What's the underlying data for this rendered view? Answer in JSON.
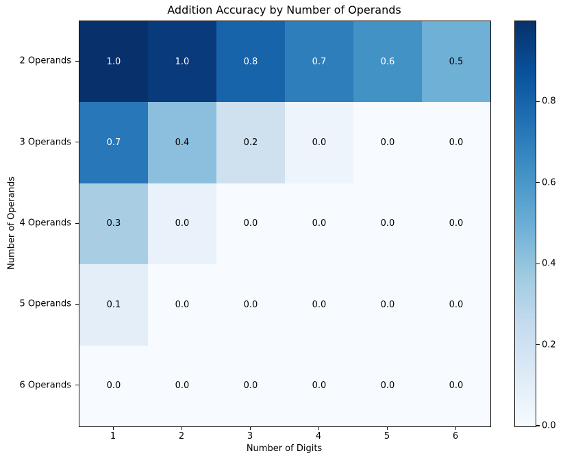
{
  "chart_data": {
    "type": "heatmap",
    "title": "Addition Accuracy by Number of Operands",
    "xlabel": "Number of Digits",
    "ylabel": "Number of Operands",
    "x_categories": [
      "1",
      "2",
      "3",
      "4",
      "5",
      "6"
    ],
    "y_categories": [
      "2 Operands",
      "3 Operands",
      "4 Operands",
      "5 Operands",
      "6 Operands"
    ],
    "values": [
      [
        1.0,
        1.0,
        0.8,
        0.7,
        0.6,
        0.5
      ],
      [
        0.7,
        0.4,
        0.2,
        0.0,
        0.0,
        0.0
      ],
      [
        0.3,
        0.0,
        0.0,
        0.0,
        0.0,
        0.0
      ],
      [
        0.1,
        0.0,
        0.0,
        0.0,
        0.0,
        0.0
      ],
      [
        0.0,
        0.0,
        0.0,
        0.0,
        0.0,
        0.0
      ]
    ],
    "cell_labels": [
      [
        "1.0",
        "1.0",
        "0.8",
        "0.7",
        "0.6",
        "0.5"
      ],
      [
        "0.7",
        "0.4",
        "0.2",
        "0.0",
        "0.0",
        "0.0"
      ],
      [
        "0.3",
        "0.0",
        "0.0",
        "0.0",
        "0.0",
        "0.0"
      ],
      [
        "0.1",
        "0.0",
        "0.0",
        "0.0",
        "0.0",
        "0.0"
      ],
      [
        "0.0",
        "0.0",
        "0.0",
        "0.0",
        "0.0",
        "0.0"
      ]
    ],
    "cell_colors": [
      [
        "#08306b",
        "#093a7c",
        "#1764ab",
        "#2e7ebc",
        "#4292c6",
        "#6fb0d7"
      ],
      [
        "#2777b9",
        "#8bbfdd",
        "#cfe0ef",
        "#edf4fb",
        "#f7fbff",
        "#f7fbff"
      ],
      [
        "#a9cee4",
        "#e9f1fa",
        "#f7fbff",
        "#f7fbff",
        "#f7fbff",
        "#f7fbff"
      ],
      [
        "#e3eef9",
        "#f7fbff",
        "#f7fbff",
        "#f7fbff",
        "#f7fbff",
        "#f7fbff"
      ],
      [
        "#f7fbff",
        "#f7fbff",
        "#f7fbff",
        "#f7fbff",
        "#f7fbff",
        "#f7fbff"
      ]
    ],
    "cell_text_colors": [
      [
        "#ffffff",
        "#ffffff",
        "#ffffff",
        "#ffffff",
        "#ffffff",
        "#000000"
      ],
      [
        "#ffffff",
        "#000000",
        "#000000",
        "#000000",
        "#000000",
        "#000000"
      ],
      [
        "#000000",
        "#000000",
        "#000000",
        "#000000",
        "#000000",
        "#000000"
      ],
      [
        "#000000",
        "#000000",
        "#000000",
        "#000000",
        "#000000",
        "#000000"
      ],
      [
        "#000000",
        "#000000",
        "#000000",
        "#000000",
        "#000000",
        "#000000"
      ]
    ],
    "colormap": "Blues",
    "grid": false,
    "colorbar": {
      "position": "right",
      "range": [
        0.0,
        1.0
      ],
      "ticks": [
        {
          "label": "0.8",
          "value": 0.8
        },
        {
          "label": "0.6",
          "value": 0.6
        },
        {
          "label": "0.4",
          "value": 0.4
        },
        {
          "label": "0.2",
          "value": 0.2
        },
        {
          "label": "0.0",
          "value": 0.0
        }
      ],
      "gradient_bottom_to_top": [
        "#f7fbff",
        "#deebf7",
        "#c6dbef",
        "#9ecae1",
        "#6baed6",
        "#4292c6",
        "#2171b5",
        "#08519c",
        "#08306b"
      ]
    }
  }
}
